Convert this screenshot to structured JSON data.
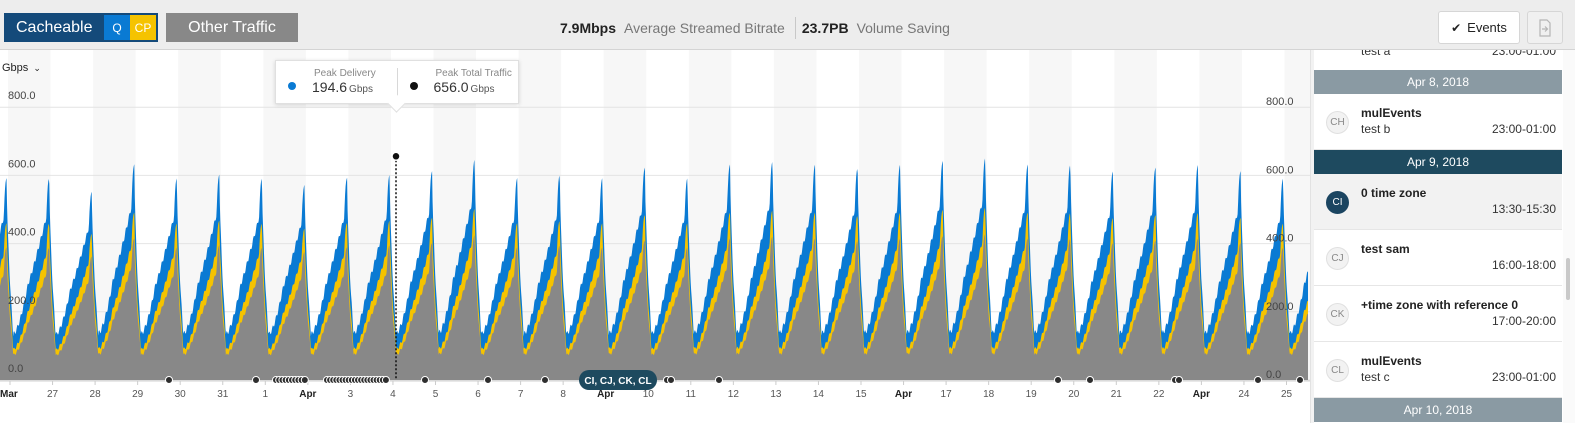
{
  "header": {
    "cacheable_label": "Cacheable",
    "badge_q": "Q",
    "badge_cp": "CP",
    "other_label": "Other Traffic",
    "stat1_value": "7.9Mbps",
    "stat1_label": "Average Streamed Bitrate",
    "stat2_value": "23.7PB",
    "stat2_label": "Volume Saving",
    "events_label": "Events"
  },
  "chart": {
    "unit_label": "Gbps",
    "tooltip": {
      "delivery_label": "Peak Delivery",
      "delivery_value": "194.6",
      "delivery_unit": "Gbps",
      "total_label": "Peak Total Traffic",
      "total_value": "656.0",
      "total_unit": "Gbps"
    },
    "marker_cluster_label": "CI, CJ, CK, CL"
  },
  "chart_data": {
    "type": "area",
    "y_unit": "Gbps",
    "ylim": [
      0,
      800
    ],
    "left_y_ticks": [
      "0.0",
      "200.0",
      "400.0",
      "600.0",
      "800.0"
    ],
    "right_y_ticks": [
      "0.0",
      "200.0",
      "400.0",
      "600.0",
      "800.0"
    ],
    "x_tick_labels": [
      "Mar",
      "27",
      "28",
      "29",
      "30",
      "31",
      "1",
      "Apr",
      "3",
      "4",
      "5",
      "6",
      "7",
      "8",
      "Apr",
      "10",
      "11",
      "12",
      "13",
      "14",
      "15",
      "Apr",
      "17",
      "18",
      "19",
      "20",
      "21",
      "22",
      "Apr",
      "24",
      "25"
    ],
    "x_bold_labels": [
      "Mar",
      "Apr"
    ],
    "series": [
      {
        "name": "Other Traffic",
        "color": "#888888"
      },
      {
        "name": "Q",
        "color": "#f5c300"
      },
      {
        "name": "Cacheable",
        "color": "#0a7ad3"
      }
    ],
    "daily_peaks_total": [
      600,
      560,
      640,
      600,
      610,
      600,
      580,
      600,
      610,
      620,
      656,
      600,
      610,
      600,
      630,
      600,
      640,
      650,
      640,
      630,
      640,
      650,
      660,
      640,
      640,
      620,
      630,
      640,
      620,
      600,
      610
    ],
    "typical_trough": 110,
    "highlight_point": {
      "value": 656.0
    }
  },
  "events": {
    "partial_top": {
      "title": "test a",
      "time": "23:00-01:00"
    },
    "groups": [
      {
        "date": "Apr 8, 2018",
        "color": "#8a9aa3",
        "items": [
          {
            "initials": "CH",
            "title": "mulEvents",
            "subtitle": "test b",
            "time": "23:00-01:00",
            "selected": false
          }
        ]
      },
      {
        "date": "Apr 9, 2018",
        "color": "#1e4a5f",
        "items": [
          {
            "initials": "CI",
            "title": "0 time zone",
            "subtitle": "",
            "time": "13:30-15:30",
            "selected": true
          },
          {
            "initials": "CJ",
            "title": "test sam",
            "subtitle": "",
            "time": "16:00-18:00",
            "selected": false
          },
          {
            "initials": "CK",
            "title": "+time zone with reference 0",
            "subtitle": "",
            "time": "17:00-20:00",
            "selected": false
          },
          {
            "initials": "CL",
            "title": "mulEvents",
            "subtitle": "test c",
            "time": "23:00-01:00",
            "selected": false
          }
        ]
      },
      {
        "date": "Apr 10, 2018",
        "color": "#8a9aa3",
        "items": []
      }
    ]
  },
  "colors": {
    "header_blue": "#144a7a",
    "accent_blue": "#0a7ad3",
    "accent_yellow": "#f5c300",
    "gray": "#888888"
  }
}
